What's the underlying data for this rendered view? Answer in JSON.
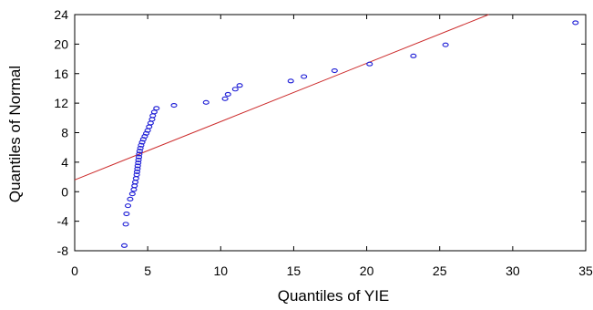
{
  "chart_data": {
    "type": "scatter",
    "title": "",
    "xlabel": "Quantiles of YIE",
    "ylabel": "Quantiles of Normal",
    "xlim": [
      0,
      35
    ],
    "ylim": [
      -8,
      24
    ],
    "x_ticks": [
      0,
      5,
      10,
      15,
      20,
      25,
      30,
      35
    ],
    "y_ticks": [
      -8,
      -4,
      0,
      4,
      8,
      12,
      16,
      20,
      24
    ],
    "grid": false,
    "legend": "none",
    "colors": {
      "points": "#1f1fd6",
      "line": "#cc2a2a",
      "frame": "#000000"
    },
    "reference_line": {
      "intercept": 1.6,
      "slope": 0.79
    },
    "series": [
      {
        "values": [
          [
            3.4,
            -7.3
          ],
          [
            3.5,
            -4.4
          ],
          [
            3.55,
            -3.0
          ],
          [
            3.65,
            -1.9
          ],
          [
            3.8,
            -1.0
          ],
          [
            3.95,
            -0.3
          ],
          [
            4.05,
            0.3
          ],
          [
            4.1,
            0.8
          ],
          [
            4.15,
            1.3
          ],
          [
            4.2,
            1.8
          ],
          [
            4.25,
            2.3
          ],
          [
            4.27,
            2.7
          ],
          [
            4.3,
            3.1
          ],
          [
            4.32,
            3.5
          ],
          [
            4.35,
            3.9
          ],
          [
            4.37,
            4.3
          ],
          [
            4.4,
            4.7
          ],
          [
            4.42,
            5.1
          ],
          [
            4.45,
            5.5
          ],
          [
            4.5,
            5.9
          ],
          [
            4.55,
            6.3
          ],
          [
            4.62,
            6.7
          ],
          [
            4.7,
            7.1
          ],
          [
            4.8,
            7.5
          ],
          [
            4.9,
            7.9
          ],
          [
            5.0,
            8.3
          ],
          [
            5.1,
            8.8
          ],
          [
            5.2,
            9.3
          ],
          [
            5.3,
            9.8
          ],
          [
            5.35,
            10.3
          ],
          [
            5.45,
            10.8
          ],
          [
            5.6,
            11.3
          ],
          [
            6.8,
            11.7
          ],
          [
            9.0,
            12.1
          ],
          [
            10.3,
            12.6
          ],
          [
            10.5,
            13.2
          ],
          [
            11.0,
            13.9
          ],
          [
            11.3,
            14.4
          ],
          [
            14.8,
            15.0
          ],
          [
            15.7,
            15.6
          ],
          [
            17.8,
            16.4
          ],
          [
            20.2,
            17.3
          ],
          [
            23.2,
            18.4
          ],
          [
            25.4,
            19.9
          ],
          [
            34.3,
            22.9
          ]
        ]
      }
    ]
  }
}
